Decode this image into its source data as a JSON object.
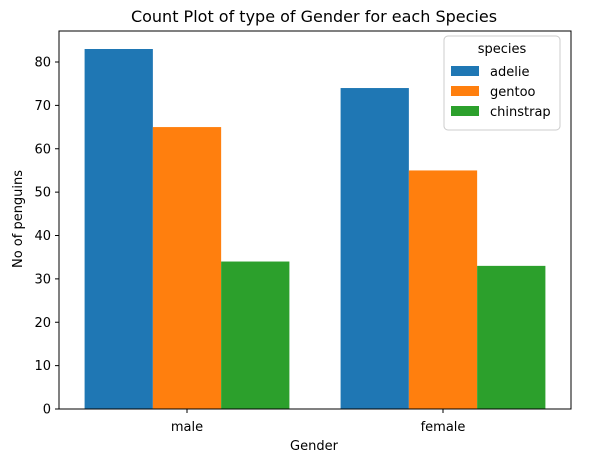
{
  "chart_data": {
    "type": "bar",
    "title": "Count Plot of type of Gender for each Species",
    "xlabel": "Gender",
    "ylabel": "No of penguins",
    "categories": [
      "male",
      "female"
    ],
    "series": [
      {
        "name": "adelie",
        "values": [
          83,
          74
        ],
        "color": "#1f77b4"
      },
      {
        "name": "gentoo",
        "values": [
          65,
          55
        ],
        "color": "#ff7f0e"
      },
      {
        "name": "chinstrap",
        "values": [
          34,
          33
        ],
        "color": "#2ca02c"
      }
    ],
    "ylim": [
      0,
      87.15
    ],
    "yticks": [
      0,
      10,
      20,
      30,
      40,
      50,
      60,
      70,
      80
    ],
    "grid": false,
    "legend": {
      "title": "species",
      "placement": "top-right"
    }
  }
}
